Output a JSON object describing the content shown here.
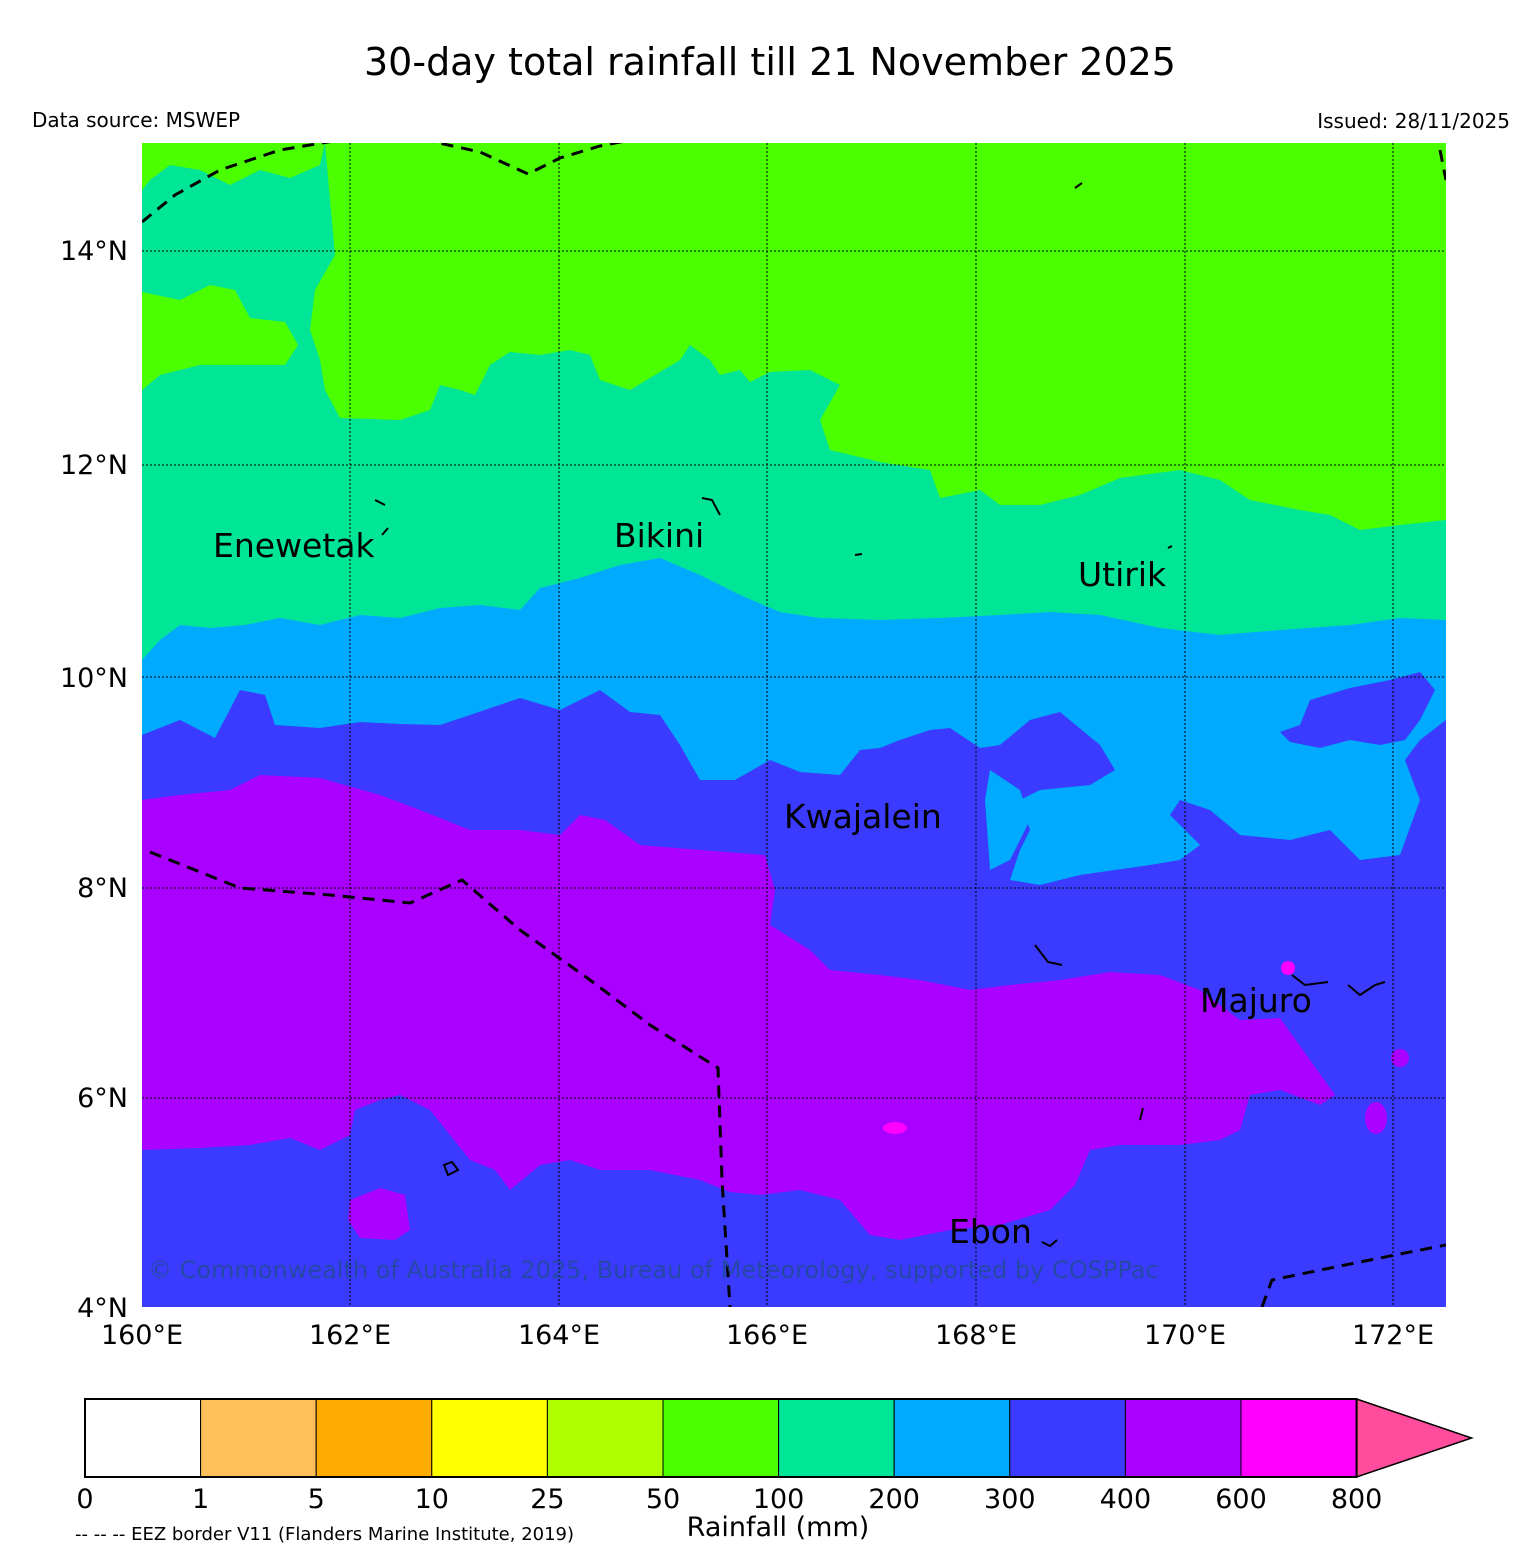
{
  "title": "30-day total rainfall till 21 November 2025",
  "data_source": "Data source: MSWEP",
  "issued": "Issued: 28/11/2025",
  "copyright": "© Commonwealth of Australia 2025, Bureau of Meteorology, supported by COSPPac",
  "lat_labels": [
    "14°N",
    "12°N",
    "10°N",
    "8°N",
    "6°N",
    "4°N"
  ],
  "lon_labels": [
    "160°E",
    "162°E",
    "164°E",
    "166°E",
    "168°E",
    "170°E",
    "172°E"
  ],
  "places": [
    "Enewetak",
    "Bikini",
    "Utirik",
    "Kwajalein",
    "Majuro",
    "Ebon"
  ],
  "colorbar": {
    "ticks": [
      "0",
      "1",
      "5",
      "10",
      "25",
      "50",
      "100",
      "200",
      "300",
      "400",
      "600",
      "800"
    ],
    "colors": [
      "#ffffff",
      "#ffbf5a",
      "#ffab00",
      "#ffff00",
      "#b0ff00",
      "#4cff00",
      "#00e696",
      "#00aaff",
      "#3b3bff",
      "#aa00ff",
      "#ff00ff",
      "#ff4c9c"
    ],
    "label": "Rainfall (mm)"
  },
  "eez_note": "-- -- -- EEZ border V11 (Flanders Marine Institute, 2019)"
}
